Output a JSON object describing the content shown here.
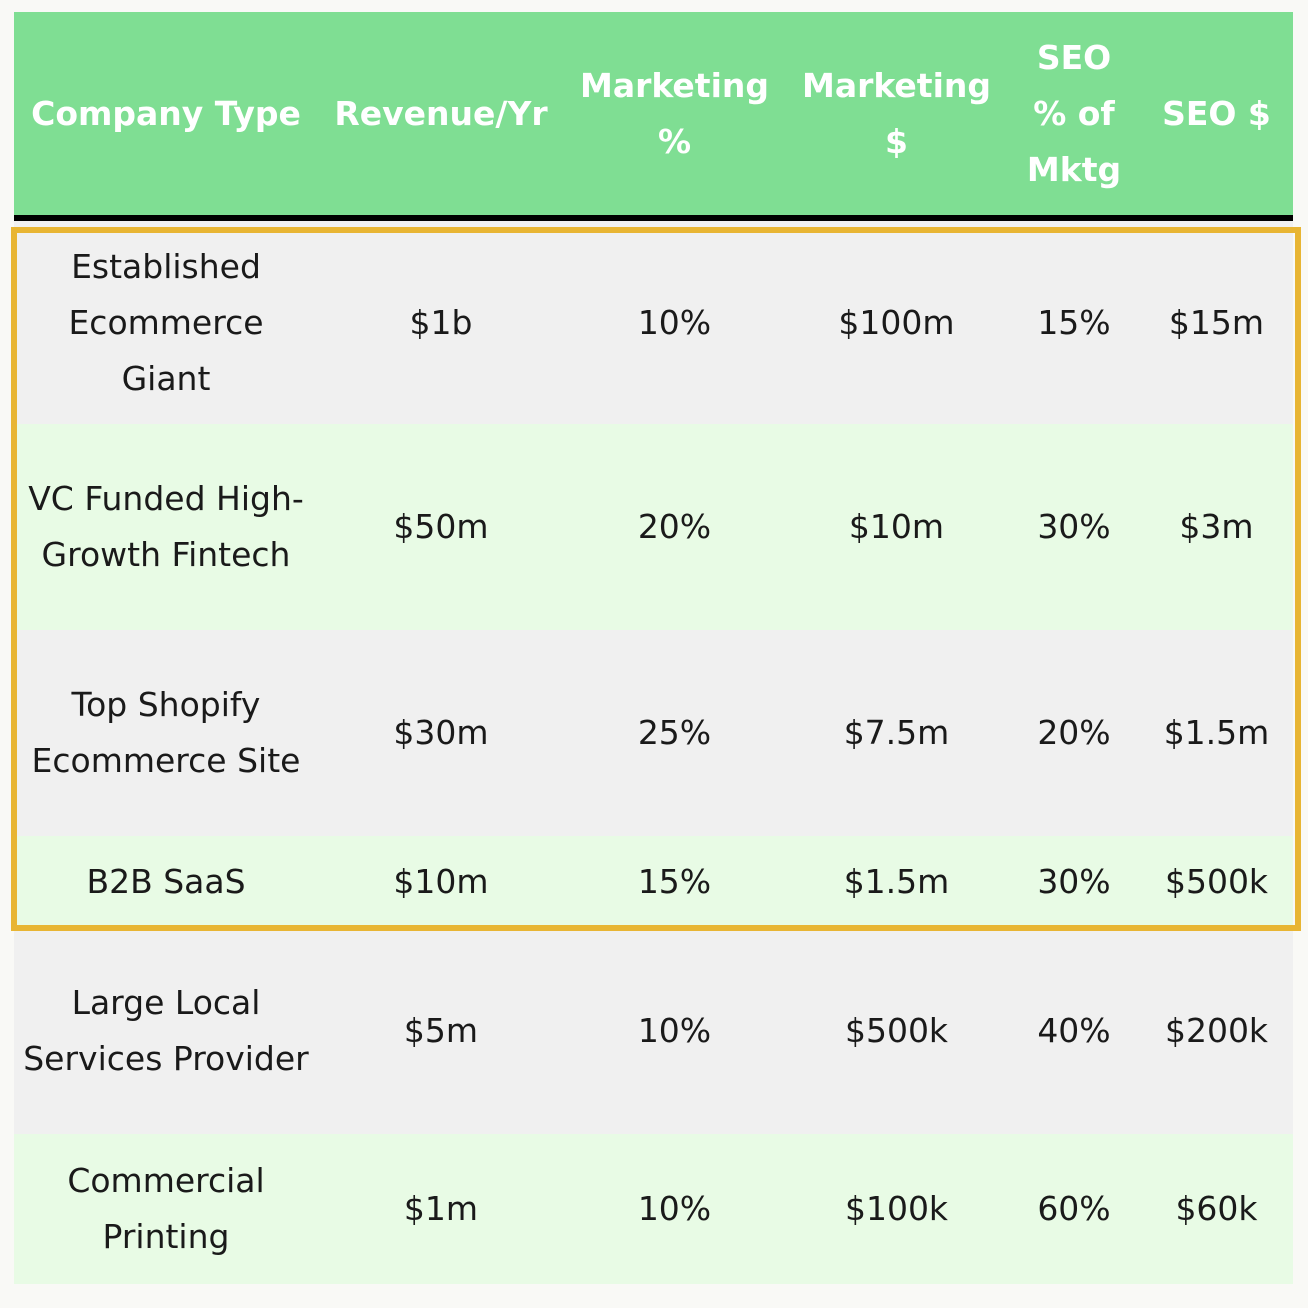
{
  "table": {
    "headers": [
      "Company Type",
      "Revenue/Yr",
      "Marketing %",
      "Marketing $",
      "SEO % of Mktg",
      "SEO $"
    ],
    "rows": [
      [
        "Established Ecommerce Giant",
        "$1b",
        "10%",
        "$100m",
        "15%",
        "$15m"
      ],
      [
        "VC Funded High-Growth Fintech",
        "$50m",
        "20%",
        "$10m",
        "30%",
        "$3m"
      ],
      [
        "Top Shopify Ecommerce Site",
        "$30m",
        "25%",
        "$7.5m",
        "20%",
        "$1.5m"
      ],
      [
        "B2B SaaS",
        "$10m",
        "15%",
        "$1.5m",
        "30%",
        "$500k"
      ],
      [
        "Large Local Services Provider",
        "$5m",
        "10%",
        "$500k",
        "40%",
        "$200k"
      ],
      [
        "Commercial Printing",
        "$1m",
        "10%",
        "$100k",
        "60%",
        "$60k"
      ]
    ]
  },
  "colors": {
    "header_bg": "#7fde93",
    "header_text": "#ffffff",
    "row_gray": "#f0f0f0",
    "row_green": "#e8fbe5",
    "highlight_border": "#e8b533"
  }
}
